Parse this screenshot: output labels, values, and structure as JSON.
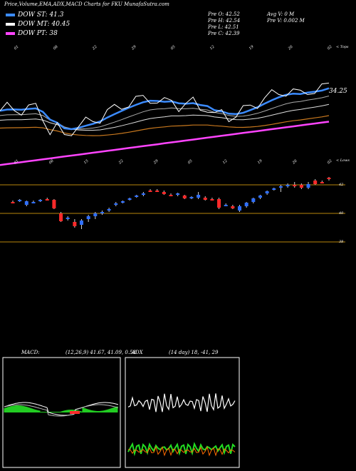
{
  "header": {
    "title": "Price,Volume,EMA,ADX,MACD Charts for FKU MunafaSutra.com",
    "legend": [
      {
        "label": "DOW ST: 41.3",
        "color": "#3b8bff"
      },
      {
        "label": "DOW MT: 40.45",
        "color": "#ffffff"
      },
      {
        "label": "DOW PT: 38",
        "color": "#ff44ff"
      }
    ],
    "stats": {
      "open": "Pre   O: 42.52",
      "high": "Pre   H: 42.54",
      "low": "Pre   L: 42.51",
      "close": "Pre   C: 42.39",
      "avg_vol": "Avg V: 0   M",
      "pre_vol": "Pre   V: 0.002   M"
    }
  },
  "ema_panel": {
    "corner_label": "< Tops",
    "last_value": "34.25",
    "date_labels": [
      "01",
      "08",
      "22",
      "29",
      "05",
      "12",
      "19",
      "26",
      "02"
    ]
  },
  "price_panel": {
    "corner_label": "< Lows",
    "date_labels": [
      "01",
      "08",
      "15",
      "22",
      "29",
      "05",
      "12",
      "19",
      "26",
      "02"
    ],
    "levels": [
      "42",
      "40",
      "38"
    ]
  },
  "macd_panel": {
    "label": "MACD:",
    "params": "(12,26,9) 41.67, 41.09, 0.58"
  },
  "adx_panel": {
    "label": "ADX",
    "params": "(14 day) 18, -41, 29"
  },
  "colors": {
    "ema_short": "#3b8bff",
    "ema_mid": "#ffffff",
    "ema_long": "#ff44ff",
    "up": "#2f6fff",
    "down": "#ff2a2a",
    "macd_hist": "#22cc22",
    "adx_plus": "#22dd22",
    "adx_minus": "#ff6a00",
    "level_line": "#b8860b"
  },
  "chart_data": {
    "type": "candlestick",
    "price_axis": {
      "levels": [
        42,
        40,
        38
      ]
    },
    "candles": [
      [
        40.8,
        40.9,
        40.7,
        40.75
      ],
      [
        40.9,
        41.0,
        40.8,
        40.95
      ],
      [
        40.6,
        40.9,
        40.5,
        40.85
      ],
      [
        40.8,
        40.9,
        40.7,
        40.8
      ],
      [
        40.9,
        41.0,
        40.8,
        40.95
      ],
      [
        41.0,
        41.1,
        40.9,
        40.95
      ],
      [
        40.95,
        41.0,
        40.3,
        40.35
      ],
      [
        40.0,
        40.1,
        39.4,
        39.45
      ],
      [
        39.6,
        39.8,
        39.5,
        39.7
      ],
      [
        39.4,
        39.6,
        39.0,
        39.1
      ],
      [
        39.2,
        39.6,
        38.9,
        39.5
      ],
      [
        39.6,
        39.9,
        39.4,
        39.8
      ],
      [
        39.8,
        40.1,
        39.6,
        40.0
      ],
      [
        40.0,
        40.2,
        39.9,
        40.1
      ],
      [
        40.2,
        40.4,
        40.1,
        40.3
      ],
      [
        40.6,
        40.8,
        40.5,
        40.7
      ],
      [
        40.8,
        40.9,
        40.7,
        40.85
      ],
      [
        41.0,
        41.1,
        40.9,
        41.05
      ],
      [
        41.2,
        41.3,
        41.1,
        41.25
      ],
      [
        41.3,
        41.5,
        41.2,
        41.4
      ],
      [
        41.6,
        41.7,
        41.5,
        41.55
      ],
      [
        41.6,
        41.7,
        41.5,
        41.55
      ],
      [
        41.5,
        41.6,
        41.3,
        41.35
      ],
      [
        41.3,
        41.4,
        41.2,
        41.25
      ],
      [
        41.3,
        41.45,
        41.2,
        41.4
      ],
      [
        41.25,
        41.3,
        41.0,
        41.05
      ],
      [
        41.1,
        41.2,
        41.0,
        41.15
      ],
      [
        41.1,
        41.5,
        41.0,
        41.3
      ],
      [
        41.1,
        41.2,
        40.9,
        40.95
      ],
      [
        41.0,
        41.1,
        40.9,
        40.95
      ],
      [
        41.0,
        41.1,
        40.3,
        40.4
      ],
      [
        40.6,
        40.7,
        40.5,
        40.6
      ],
      [
        40.5,
        40.6,
        40.3,
        40.35
      ],
      [
        40.2,
        40.6,
        40.1,
        40.5
      ],
      [
        40.5,
        40.8,
        40.4,
        40.75
      ],
      [
        40.8,
        41.1,
        40.7,
        41.05
      ],
      [
        41.1,
        41.3,
        41.0,
        41.25
      ],
      [
        41.4,
        41.6,
        41.3,
        41.55
      ],
      [
        41.7,
        41.8,
        41.6,
        41.75
      ],
      [
        41.8,
        42.0,
        41.5,
        41.9
      ],
      [
        41.9,
        42.1,
        41.8,
        42.0
      ],
      [
        42.0,
        42.2,
        41.8,
        41.95
      ],
      [
        42.0,
        42.1,
        41.7,
        41.8
      ],
      [
        41.8,
        42.2,
        41.7,
        42.05
      ],
      [
        42.3,
        42.4,
        42.0,
        42.05
      ],
      [
        42.2,
        42.3,
        42.1,
        42.15
      ],
      [
        42.5,
        42.55,
        42.3,
        42.4
      ]
    ]
  }
}
